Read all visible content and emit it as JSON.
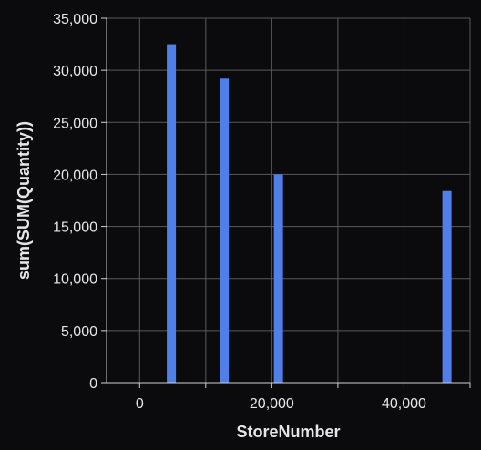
{
  "colors": {
    "background": "#0b0b0d",
    "bar": "#4f7fe8",
    "grid": "#5a5a5a",
    "axis": "#d0d0d0",
    "text": "#e6e6e6"
  },
  "chart_data": {
    "type": "bar",
    "title": "",
    "xlabel": "StoreNumber",
    "ylabel": "sum(SUM(Quantity))",
    "xlim": [
      -5000,
      50000
    ],
    "ylim": [
      0,
      35000
    ],
    "x_ticks": [
      0,
      20000,
      40000
    ],
    "x_tick_labels": [
      "0",
      "20,000",
      "40,000"
    ],
    "y_ticks": [
      0,
      5000,
      10000,
      15000,
      20000,
      25000,
      30000,
      35000
    ],
    "y_tick_labels": [
      "0",
      "5,000",
      "10,000",
      "15,000",
      "20,000",
      "25,000",
      "30,000",
      "35,000"
    ],
    "grid": true,
    "series": [
      {
        "x": [
          4800,
          12800,
          21000,
          46500
        ],
        "values": [
          32500,
          29200,
          20000,
          18400
        ]
      }
    ]
  }
}
